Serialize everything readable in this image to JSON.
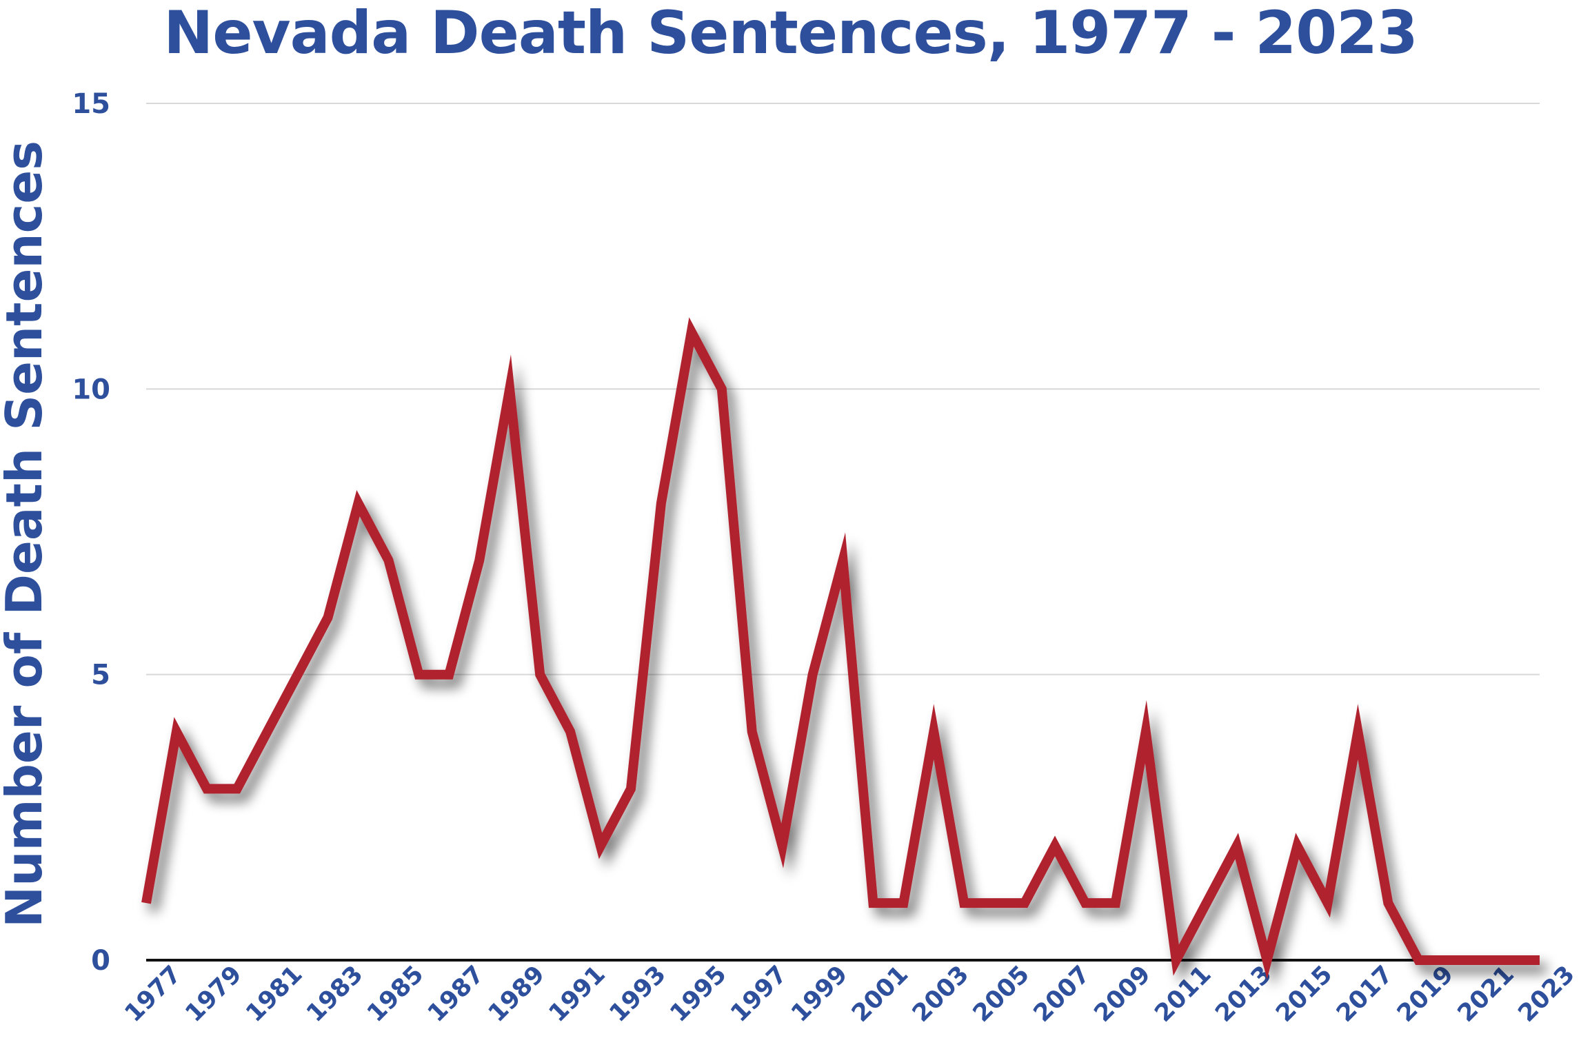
{
  "chart_data": {
    "type": "line",
    "title": "Nevada Death Sentences, 1977 - 2023",
    "xlabel": "",
    "ylabel": "Number of Death Sentences",
    "ylim": [
      0,
      15
    ],
    "yticks": [
      "0",
      "5",
      "10",
      "15"
    ],
    "grid": true,
    "legend": "none",
    "x": [
      1977,
      1978,
      1979,
      1980,
      1981,
      1982,
      1983,
      1984,
      1985,
      1986,
      1987,
      1988,
      1989,
      1990,
      1991,
      1992,
      1993,
      1994,
      1995,
      1996,
      1997,
      1998,
      1999,
      2000,
      2001,
      2002,
      2003,
      2004,
      2005,
      2006,
      2007,
      2008,
      2009,
      2010,
      2011,
      2012,
      2013,
      2014,
      2015,
      2016,
      2017,
      2018,
      2019,
      2020,
      2021,
      2022,
      2023
    ],
    "xtick_labels": [
      "1977",
      "1979",
      "1981",
      "1983",
      "1985",
      "1987",
      "1989",
      "1991",
      "1993",
      "1995",
      "1997",
      "1999",
      "2001",
      "2003",
      "2005",
      "2007",
      "2009",
      "2011",
      "2013",
      "2015",
      "2017",
      "2019",
      "2021",
      "2023"
    ],
    "series": [
      {
        "values": [
          1,
          4,
          3,
          3,
          4,
          5,
          6,
          8,
          7,
          5,
          5,
          7,
          10,
          5,
          4,
          2,
          3,
          8,
          11,
          10,
          4,
          2,
          5,
          7,
          1,
          1,
          4,
          1,
          1,
          1,
          2,
          1,
          1,
          4,
          0,
          1,
          2,
          0,
          2,
          1,
          4,
          1,
          0,
          0,
          0,
          0,
          0
        ],
        "color": "#b0232f"
      }
    ],
    "colors": {
      "text": "#2d4f9c",
      "grid": "#d8d8d8",
      "baseline": "#111111",
      "line": "#b0232f"
    }
  }
}
